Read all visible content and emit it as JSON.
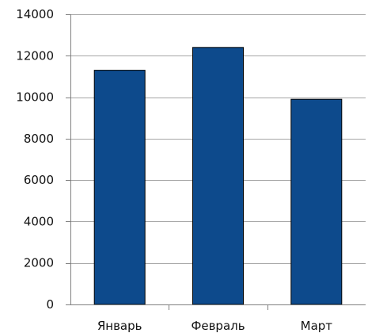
{
  "chart_data": {
    "type": "bar",
    "title": "",
    "xlabel": "",
    "ylabel": "",
    "categories": [
      "Январь",
      "Февраль",
      "Март"
    ],
    "values": [
      11300,
      12400,
      9900
    ],
    "ylim": [
      0,
      14000
    ],
    "yticks": [
      0,
      2000,
      4000,
      6000,
      8000,
      10000,
      12000,
      14000
    ],
    "grid": true,
    "legend": "none",
    "colors": {
      "bar": "#0d4a8c",
      "bar_edge": "#000000",
      "grid": "#a6a6a6",
      "axis": "#808080"
    }
  }
}
